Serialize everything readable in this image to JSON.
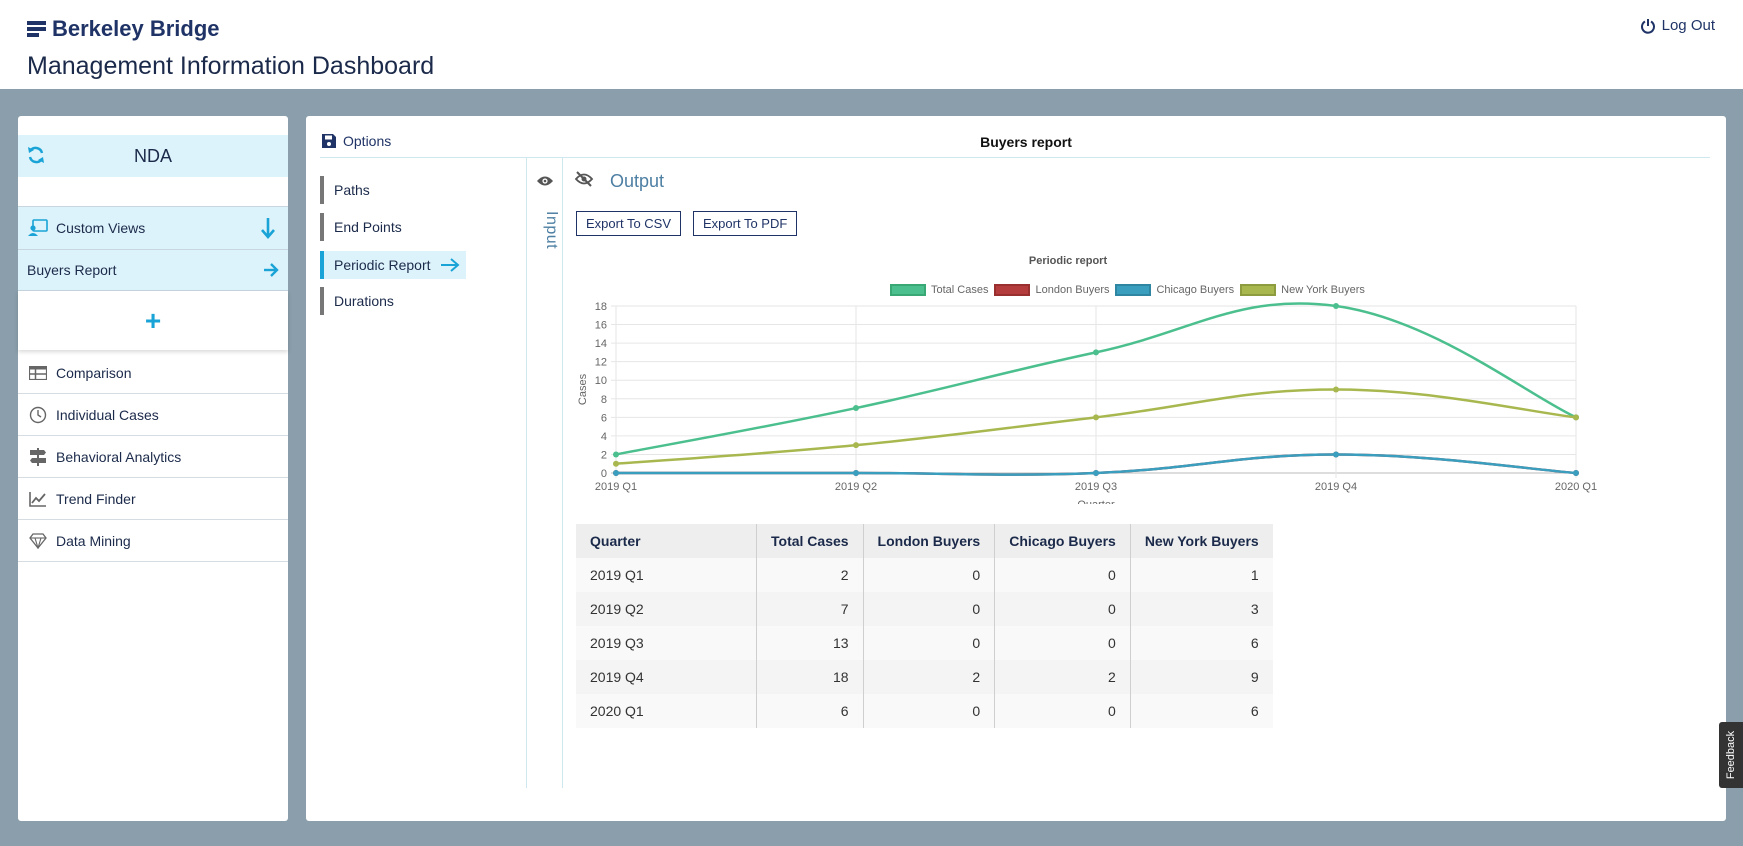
{
  "header": {
    "logo_text": "Berkeley Bridge",
    "app_title": "Management Information Dashboard",
    "logout_label": "Log Out"
  },
  "sidebar": {
    "context": "NDA",
    "custom_views_label": "Custom Views",
    "buyers_report_label": "Buyers Report",
    "add_label": "+",
    "nav": [
      {
        "label": "Comparison",
        "icon": "table-icon"
      },
      {
        "label": "Individual Cases",
        "icon": "clock-icon"
      },
      {
        "label": "Behavioral Analytics",
        "icon": "signpost-icon"
      },
      {
        "label": "Trend Finder",
        "icon": "trend-chart-icon"
      },
      {
        "label": "Data Mining",
        "icon": "diamond-icon"
      }
    ]
  },
  "main": {
    "options_label": "Options",
    "report_title": "Buyers report",
    "tabs": [
      {
        "label": "Paths",
        "active": false
      },
      {
        "label": "End Points",
        "active": false
      },
      {
        "label": "Periodic Report",
        "active": true
      },
      {
        "label": "Durations",
        "active": false
      }
    ],
    "input_label": "Input",
    "output_label": "Output",
    "export_csv_label": "Export To CSV",
    "export_pdf_label": "Export To PDF",
    "feedback_label": "Feedback"
  },
  "colors": {
    "accent": "#1aa3d6",
    "brand": "#1f3366",
    "total_cases": "#4bbf8d",
    "london": "#b43c3c",
    "chicago": "#3a9fbf",
    "new_york": "#a8b84f"
  },
  "chart_data": {
    "type": "line",
    "title": "Periodic report",
    "xlabel": "Quarter",
    "ylabel": "Cases",
    "categories": [
      "2019 Q1",
      "2019 Q2",
      "2019 Q3",
      "2019 Q4",
      "2020 Q1"
    ],
    "ylim": [
      0,
      18
    ],
    "yticks": [
      0,
      2,
      4,
      6,
      8,
      10,
      12,
      14,
      16,
      18
    ],
    "legend_position": "top",
    "grid": true,
    "series": [
      {
        "name": "Total Cases",
        "color": "#4bbf8d",
        "values": [
          2,
          7,
          13,
          18,
          6
        ]
      },
      {
        "name": "London Buyers",
        "color": "#b43c3c",
        "values": [
          0,
          0,
          0,
          2,
          0
        ]
      },
      {
        "name": "Chicago Buyers",
        "color": "#3a9fbf",
        "values": [
          0,
          0,
          0,
          2,
          0
        ]
      },
      {
        "name": "New York Buyers",
        "color": "#a8b84f",
        "values": [
          1,
          3,
          6,
          9,
          6
        ]
      }
    ]
  },
  "table": {
    "headers": [
      "Quarter",
      "Total Cases",
      "London Buyers",
      "Chicago Buyers",
      "New York Buyers"
    ],
    "rows": [
      [
        "2019 Q1",
        "2",
        "0",
        "0",
        "1"
      ],
      [
        "2019 Q2",
        "7",
        "0",
        "0",
        "3"
      ],
      [
        "2019 Q3",
        "13",
        "0",
        "0",
        "6"
      ],
      [
        "2019 Q4",
        "18",
        "2",
        "2",
        "9"
      ],
      [
        "2020 Q1",
        "6",
        "0",
        "0",
        "6"
      ]
    ]
  }
}
